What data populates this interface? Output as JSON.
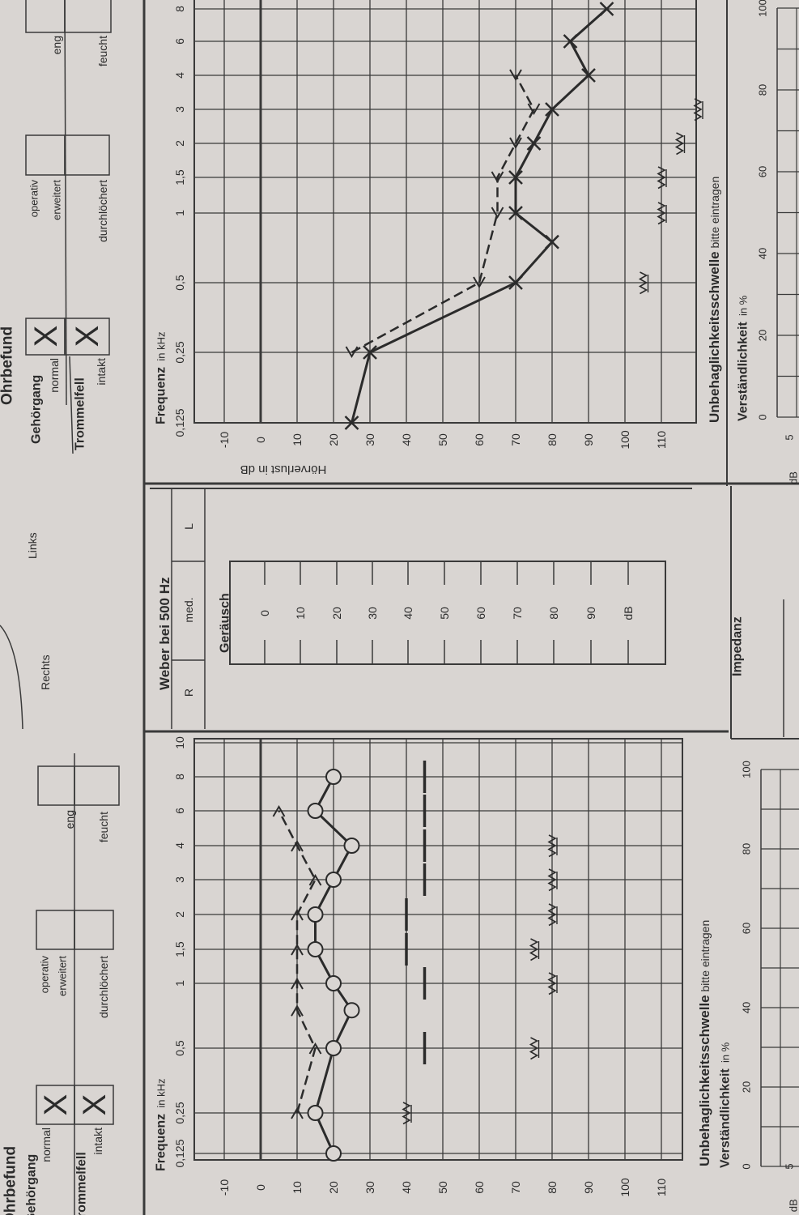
{
  "colors": {
    "paper": "#d9d5d2",
    "ink": "#2b2b2b",
    "print": "#3a3a3a"
  },
  "form": {
    "section_title": "Ohrbefund",
    "right_ear_header": "Rechts",
    "left_ear_header": "Links",
    "findings": {
      "gehoergang": "Gehörgang",
      "normal": "normal",
      "operativ": "operativ",
      "erweitert": "erweitert",
      "eng": "eng",
      "trommelfell": "Trommelfell",
      "intakt": "intakt",
      "durchloechert": "durchlöchert",
      "feucht": "feucht",
      "check_mark": "X"
    },
    "right_ear_checked": [
      "normal",
      "intakt"
    ],
    "left_ear_checked": [
      "normal",
      "intakt"
    ]
  },
  "weber": {
    "title": "Weber bei 500 Hz",
    "options": [
      "R",
      "med.",
      "L"
    ],
    "noise_label": "Geräusch",
    "noise_scale": [
      "0",
      "10",
      "20",
      "30",
      "40",
      "50",
      "60",
      "70",
      "80",
      "90",
      "dB"
    ]
  },
  "speech": {
    "title": "Verständlichkeit",
    "unit": "in %",
    "ticks": [
      "0",
      "20",
      "40",
      "60",
      "80",
      "100"
    ],
    "db_tick": "5",
    "db_unit": "in dB",
    "db_unit_short": "dB"
  },
  "impedance": {
    "title": "Impedanz"
  },
  "chart_data": [
    {
      "type": "line",
      "xlabel": "Frequenz",
      "xlabel_unit": "in kHz",
      "x_scale": "log",
      "x_ticks": [
        "0,125",
        "0,25",
        "0,5",
        "1",
        "1,5",
        "2",
        "3",
        "4",
        "6",
        "8",
        "10"
      ],
      "y_ticks": [
        "-10",
        "0",
        "10",
        "20",
        "30",
        "40",
        "50",
        "60",
        "70",
        "80",
        "90",
        "100",
        "110"
      ],
      "ylim": [
        -10,
        110
      ],
      "grid": true,
      "ucl_label": "Unbehaglichkeitsschwelle",
      "ucl_hint": "bitte eintragen",
      "series": [
        {
          "marker": "circle",
          "line": "solid",
          "x": [
            0.125,
            0.25,
            0.5,
            0.75,
            1,
            1.5,
            2,
            3,
            4,
            6,
            8
          ],
          "y": [
            20,
            15,
            20,
            25,
            20,
            15,
            15,
            20,
            25,
            15,
            20
          ]
        },
        {
          "marker": "caret-right",
          "line": "dashed",
          "x": [
            0.25,
            0.5,
            0.75,
            1,
            1.5,
            2,
            3,
            4,
            6
          ],
          "y": [
            10,
            15,
            10,
            10,
            10,
            10,
            15,
            10,
            5
          ]
        },
        {
          "marker": "dash",
          "line": "none",
          "x": [
            0.5,
            1,
            1.5,
            2,
            3,
            4,
            6,
            8
          ],
          "y": [
            45,
            45,
            40,
            40,
            45,
            45,
            45,
            45
          ]
        },
        {
          "marker": "zigzag",
          "line": "none",
          "x": [
            0.25,
            0.5,
            1,
            1.5,
            2,
            3,
            4
          ],
          "y": [
            40,
            75,
            80,
            75,
            80,
            80,
            80
          ]
        }
      ]
    },
    {
      "type": "line",
      "xlabel": "Frequenz",
      "xlabel_unit": "in kHz",
      "x_scale": "log",
      "x_ticks": [
        "0,125",
        "0,25",
        "0,5",
        "1",
        "1,5",
        "2",
        "3",
        "4",
        "6",
        "8"
      ],
      "y_ticks": [
        "-10",
        "0",
        "10",
        "20",
        "30",
        "40",
        "50",
        "60",
        "70",
        "80",
        "90",
        "100",
        "110"
      ],
      "ylabel": "Hörverlust in dB",
      "ylim": [
        -10,
        110
      ],
      "grid": true,
      "ucl_label": "Unbehaglichkeitsschwelle",
      "ucl_hint": "bitte eintragen",
      "series": [
        {
          "marker": "x",
          "line": "solid",
          "x": [
            0.125,
            0.25,
            0.5,
            0.75,
            1,
            1.5,
            2,
            3,
            4,
            6,
            8
          ],
          "y": [
            25,
            30,
            70,
            80,
            70,
            70,
            75,
            80,
            90,
            85,
            95
          ]
        },
        {
          "marker": "caret-left",
          "line": "dashed",
          "x": [
            0.25,
            0.5,
            1,
            1.5,
            2,
            3,
            4
          ],
          "y": [
            25,
            60,
            65,
            65,
            70,
            75,
            70
          ]
        },
        {
          "marker": "zigzag",
          "line": "none",
          "x": [
            0.5,
            1,
            1.5,
            2,
            3
          ],
          "y": [
            105,
            110,
            110,
            115,
            120
          ]
        }
      ]
    }
  ]
}
